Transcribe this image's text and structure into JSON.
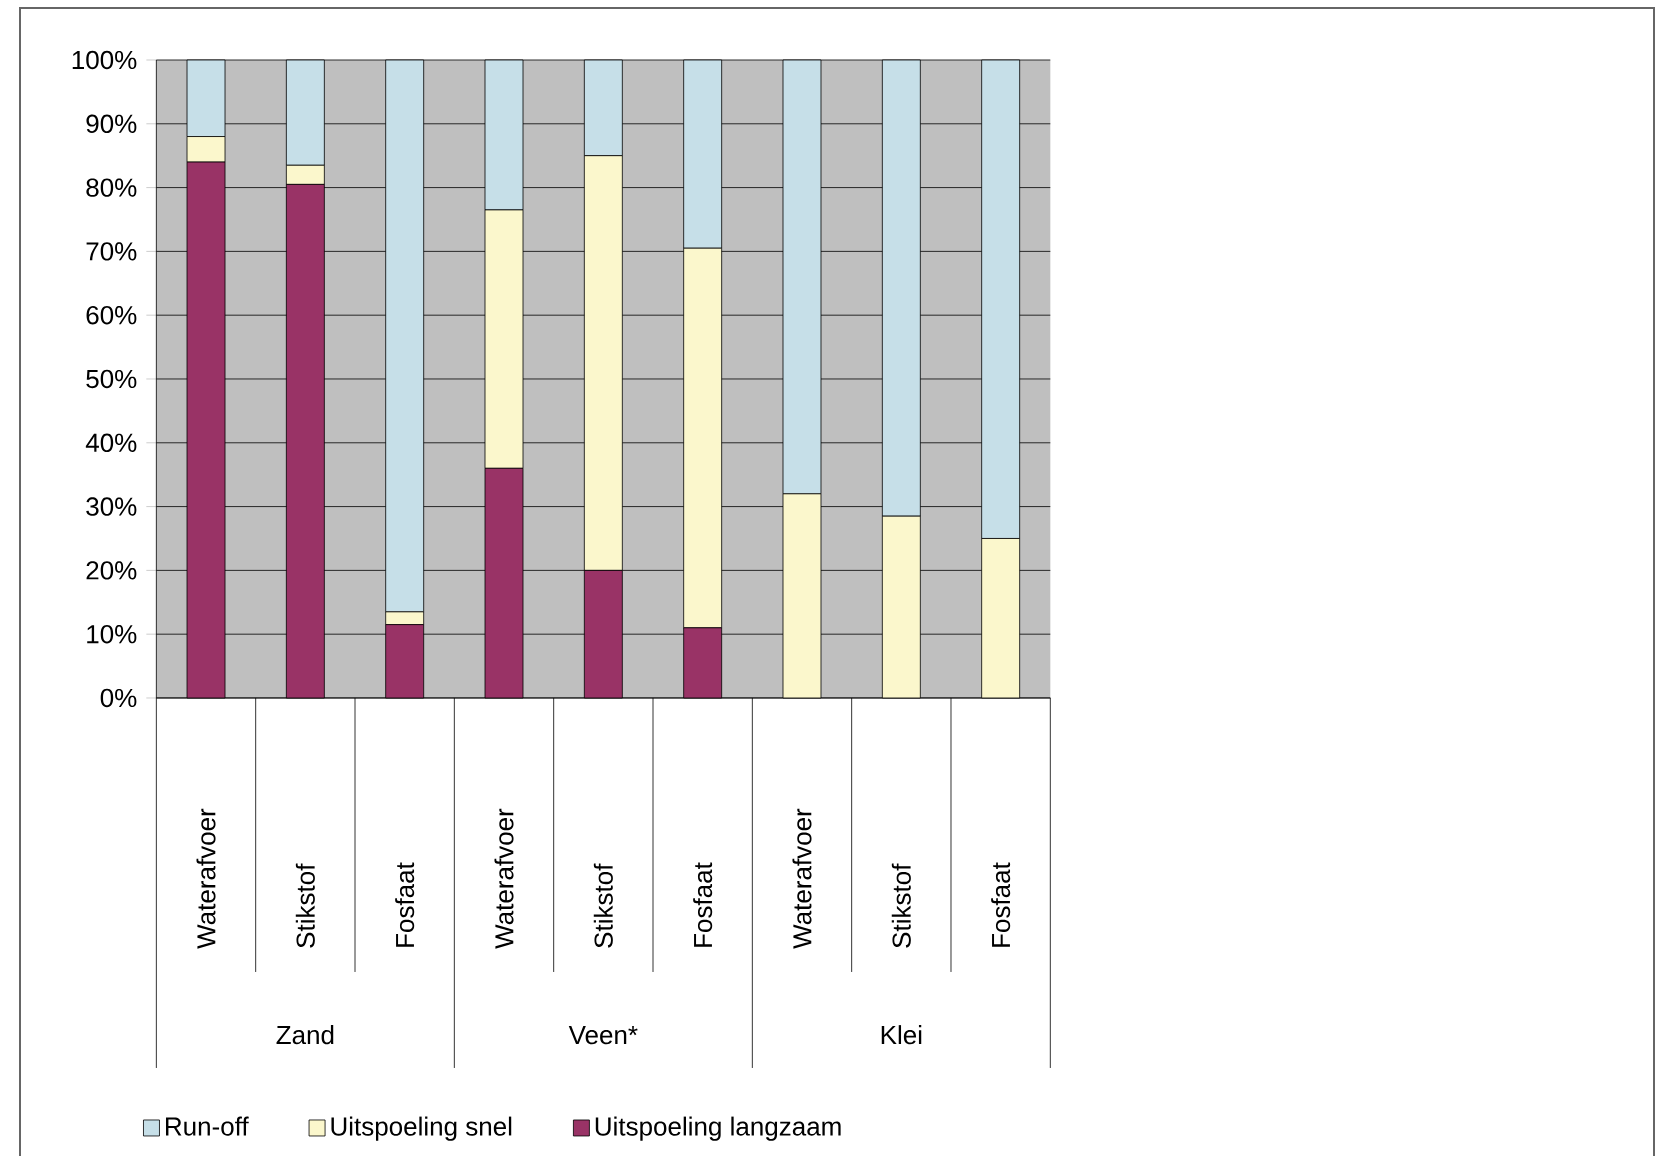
{
  "chart_data": {
    "type": "bar",
    "stacked": true,
    "grid": "y",
    "legend": "bottom",
    "categories": [
      "Waterafvoer",
      "Stikstof",
      "Fosfaat",
      "Waterafvoer",
      "Stikstof",
      "Fosfaat",
      "Waterafvoer",
      "Stikstof",
      "Fosfaat"
    ],
    "annotations": [
      "Zand",
      "Veen*",
      "Klei"
    ],
    "series": [
      {
        "name": "Uitspoeling langzaam",
        "color": "#993366",
        "values": [
          84,
          80.5,
          11.5,
          36,
          20,
          11,
          0,
          0,
          0
        ]
      },
      {
        "name": "Uitspoeling snel",
        "color": "#fbf7cc",
        "values": [
          4,
          3,
          2,
          40.5,
          65,
          59.5,
          32,
          28.5,
          25
        ]
      },
      {
        "name": "Run-off",
        "color": "#c6dfe8",
        "values": [
          12,
          16.5,
          86.5,
          23.5,
          15,
          29.5,
          68,
          71.5,
          75
        ]
      }
    ],
    "ylim": [
      0,
      100
    ],
    "yticks": [
      {
        "value": 0,
        "label": "0%"
      },
      {
        "value": 10,
        "label": "10%"
      },
      {
        "value": 20,
        "label": "20%"
      },
      {
        "value": 30,
        "label": "30%"
      },
      {
        "value": 40,
        "label": "40%"
      },
      {
        "value": 50,
        "label": "50%"
      },
      {
        "value": 60,
        "label": "60%"
      },
      {
        "value": 70,
        "label": "70%"
      },
      {
        "value": 80,
        "label": "80%"
      },
      {
        "value": 90,
        "label": "90%"
      },
      {
        "value": 100,
        "label": "100%"
      }
    ]
  }
}
